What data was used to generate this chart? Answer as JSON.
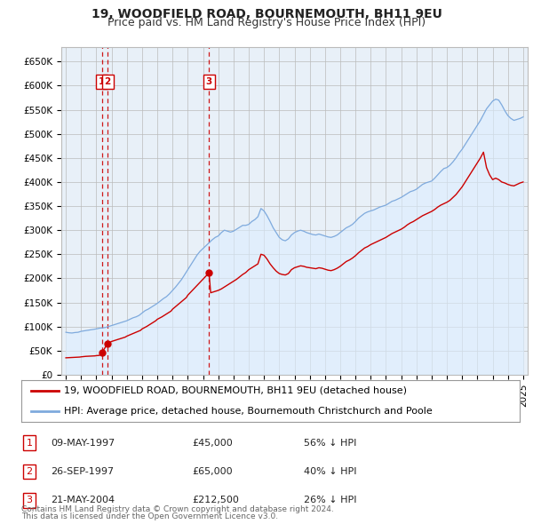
{
  "title": "19, WOODFIELD ROAD, BOURNEMOUTH, BH11 9EU",
  "subtitle": "Price paid vs. HM Land Registry's House Price Index (HPI)",
  "title_fontsize": 10,
  "subtitle_fontsize": 9,
  "ylabel_ticks": [
    "£0",
    "£50K",
    "£100K",
    "£150K",
    "£200K",
    "£250K",
    "£300K",
    "£350K",
    "£400K",
    "£450K",
    "£500K",
    "£550K",
    "£600K",
    "£650K"
  ],
  "ytick_values": [
    0,
    50000,
    100000,
    150000,
    200000,
    250000,
    300000,
    350000,
    400000,
    450000,
    500000,
    550000,
    600000,
    650000
  ],
  "xlim_min": 1994.7,
  "xlim_max": 2025.3,
  "ylim_min": 0,
  "ylim_max": 680000,
  "sale_color": "#cc0000",
  "hpi_color": "#7faadd",
  "hpi_fill_color": "#ddeeff",
  "transactions": [
    {
      "label": "1",
      "date_num": 1997.36,
      "price": 45000,
      "note": "09-MAY-1997",
      "price_str": "£45,000",
      "pct": "56% ↓ HPI"
    },
    {
      "label": "2",
      "date_num": 1997.74,
      "price": 65000,
      "note": "26-SEP-1997",
      "price_str": "£65,000",
      "pct": "40% ↓ HPI"
    },
    {
      "label": "3",
      "date_num": 2004.39,
      "price": 212500,
      "note": "21-MAY-2004",
      "price_str": "£212,500",
      "pct": "26% ↓ HPI"
    }
  ],
  "legend_entries": [
    "19, WOODFIELD ROAD, BOURNEMOUTH, BH11 9EU (detached house)",
    "HPI: Average price, detached house, Bournemouth Christchurch and Poole"
  ],
  "footer1": "Contains HM Land Registry data © Crown copyright and database right 2024.",
  "footer2": "This data is licensed under the Open Government Licence v3.0.",
  "background_color": "#ffffff",
  "grid_color": "#bbbbbb",
  "plot_bg_color": "#e8f0f8"
}
